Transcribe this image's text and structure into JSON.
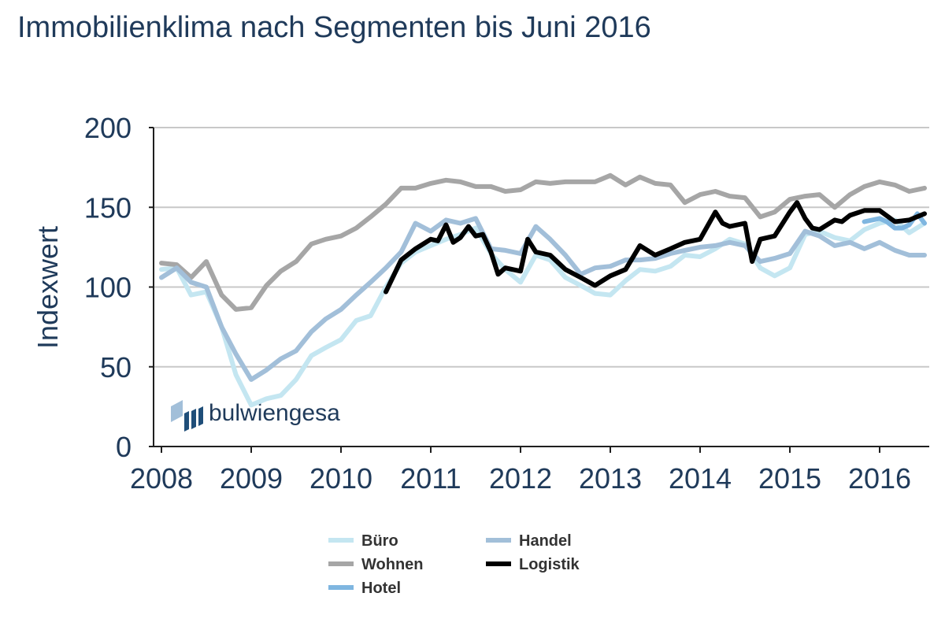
{
  "chart_data": {
    "type": "line",
    "title": "Immobilienklima nach Segmenten bis Juni 2016",
    "xlabel": "",
    "ylabel": "Indexwert",
    "ylim": [
      0,
      200
    ],
    "xlim": [
      2008,
      2016.5
    ],
    "yticks": [
      "0",
      "50",
      "100",
      "150",
      "200"
    ],
    "xticks": [
      "2008",
      "2009",
      "2010",
      "2011",
      "2012",
      "2013",
      "2014",
      "2015",
      "2016"
    ],
    "grid": "horizontal",
    "legend_position": "bottom",
    "series": [
      {
        "name": "Büro",
        "color": "#c4e6f1",
        "x": [
          2008,
          2008.17,
          2008.33,
          2008.5,
          2008.67,
          2008.83,
          2009,
          2009.17,
          2009.33,
          2009.5,
          2009.67,
          2009.83,
          2010,
          2010.17,
          2010.33,
          2010.5,
          2010.67,
          2010.83,
          2011,
          2011.17,
          2011.33,
          2011.5,
          2011.67,
          2011.83,
          2012,
          2012.17,
          2012.33,
          2012.5,
          2012.67,
          2012.83,
          2013,
          2013.17,
          2013.33,
          2013.5,
          2013.67,
          2013.83,
          2014,
          2014.17,
          2014.33,
          2014.5,
          2014.67,
          2014.83,
          2015,
          2015.17,
          2015.33,
          2015.5,
          2015.67,
          2015.83,
          2016,
          2016.17,
          2016.33,
          2016.5
        ],
        "values": [
          111,
          112,
          95,
          97,
          75,
          45,
          26,
          30,
          32,
          42,
          57,
          62,
          67,
          79,
          82,
          100,
          115,
          122,
          126,
          130,
          133,
          137,
          121,
          111,
          103,
          120,
          117,
          106,
          101,
          96,
          95,
          104,
          111,
          110,
          113,
          120,
          119,
          124,
          130,
          127,
          112,
          107,
          112,
          133,
          135,
          131,
          129,
          136,
          140,
          142,
          134,
          140
        ]
      },
      {
        "name": "Wohnen",
        "color": "#a6a6a6",
        "x": [
          2008,
          2008.17,
          2008.33,
          2008.5,
          2008.67,
          2008.83,
          2009,
          2009.17,
          2009.33,
          2009.5,
          2009.67,
          2009.83,
          2010,
          2010.17,
          2010.33,
          2010.5,
          2010.67,
          2010.83,
          2011,
          2011.17,
          2011.33,
          2011.5,
          2011.67,
          2011.83,
          2012,
          2012.17,
          2012.33,
          2012.5,
          2012.67,
          2012.83,
          2013,
          2013.17,
          2013.33,
          2013.5,
          2013.67,
          2013.83,
          2014,
          2014.17,
          2014.33,
          2014.5,
          2014.67,
          2014.83,
          2015,
          2015.17,
          2015.33,
          2015.5,
          2015.67,
          2015.83,
          2016,
          2016.17,
          2016.33,
          2016.5
        ],
        "values": [
          115,
          114,
          106,
          116,
          95,
          86,
          87,
          101,
          110,
          116,
          127,
          130,
          132,
          137,
          144,
          152,
          162,
          162,
          165,
          167,
          166,
          163,
          163,
          160,
          161,
          166,
          165,
          166,
          166,
          166,
          170,
          164,
          169,
          165,
          164,
          153,
          158,
          160,
          157,
          156,
          144,
          147,
          155,
          157,
          158,
          150,
          158,
          163,
          166,
          164,
          160,
          162
        ]
      },
      {
        "name": "Hotel",
        "color": "#7fb6e0",
        "x": [
          2015.83,
          2016,
          2016.08,
          2016.17,
          2016.25,
          2016.33,
          2016.42,
          2016.5
        ],
        "values": [
          141,
          143,
          141,
          137,
          137,
          139,
          146,
          140
        ]
      },
      {
        "name": "Handel",
        "color": "#a2bfd9",
        "x": [
          2008,
          2008.17,
          2008.33,
          2008.5,
          2008.67,
          2008.83,
          2009,
          2009.17,
          2009.33,
          2009.5,
          2009.67,
          2009.83,
          2010,
          2010.17,
          2010.33,
          2010.5,
          2010.67,
          2010.83,
          2011,
          2011.17,
          2011.33,
          2011.5,
          2011.67,
          2011.83,
          2012,
          2012.17,
          2012.33,
          2012.5,
          2012.67,
          2012.83,
          2013,
          2013.17,
          2013.33,
          2013.5,
          2013.67,
          2013.83,
          2014,
          2014.17,
          2014.33,
          2014.5,
          2014.67,
          2014.83,
          2015,
          2015.17,
          2015.33,
          2015.5,
          2015.67,
          2015.83,
          2016,
          2016.17,
          2016.33,
          2016.5
        ],
        "values": [
          106,
          112,
          103,
          100,
          75,
          58,
          42,
          48,
          55,
          60,
          72,
          80,
          86,
          95,
          103,
          112,
          122,
          140,
          135,
          142,
          140,
          143,
          124,
          123,
          121,
          138,
          130,
          120,
          108,
          112,
          113,
          117,
          117,
          118,
          121,
          123,
          125,
          126,
          128,
          126,
          116,
          118,
          121,
          135,
          132,
          126,
          128,
          124,
          128,
          123,
          120,
          120
        ]
      },
      {
        "name": "Logistik",
        "color": "#000000",
        "x": [
          2010.5,
          2010.67,
          2010.83,
          2011,
          2011.08,
          2011.17,
          2011.25,
          2011.33,
          2011.42,
          2011.5,
          2011.58,
          2011.67,
          2011.75,
          2011.83,
          2012,
          2012.08,
          2012.17,
          2012.33,
          2012.5,
          2012.67,
          2012.83,
          2013,
          2013.17,
          2013.33,
          2013.5,
          2013.67,
          2013.83,
          2014,
          2014.08,
          2014.17,
          2014.25,
          2014.33,
          2014.5,
          2014.58,
          2014.67,
          2014.83,
          2015,
          2015.08,
          2015.17,
          2015.25,
          2015.33,
          2015.5,
          2015.58,
          2015.67,
          2015.83,
          2016,
          2016.17,
          2016.33,
          2016.5
        ],
        "values": [
          97,
          117,
          124,
          130,
          129,
          139,
          128,
          131,
          138,
          132,
          133,
          122,
          108,
          112,
          110,
          130,
          122,
          120,
          111,
          106,
          101,
          107,
          111,
          126,
          120,
          124,
          128,
          130,
          138,
          147,
          140,
          138,
          140,
          116,
          130,
          132,
          147,
          153,
          143,
          137,
          136,
          142,
          141,
          145,
          148,
          148,
          141,
          142,
          146
        ]
      }
    ]
  },
  "logo": {
    "text": "bulwiengesa"
  }
}
